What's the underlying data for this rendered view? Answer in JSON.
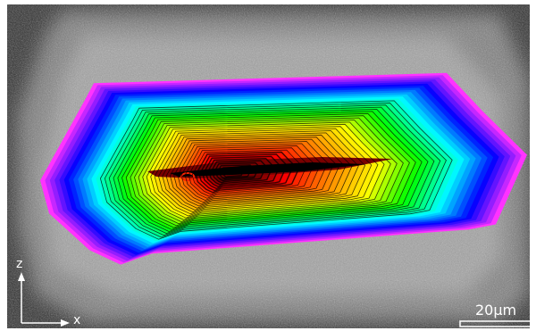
{
  "image": {
    "description_colors": {
      "frame": "#ffffff",
      "background_dark": "#1c1c1c",
      "background_light": "#d2d2d2",
      "contour_line": "#000000",
      "annotation": "#ffffff"
    },
    "heatmap_palette": [
      "#ff33ff",
      "#0000ff",
      "#00ffff",
      "#00ff00",
      "#ffff00",
      "#ff8800",
      "#ff0000",
      "#000000"
    ]
  },
  "axes": {
    "z_label": "z",
    "x_label": "x"
  },
  "scale_bar": {
    "label": "20μm"
  }
}
